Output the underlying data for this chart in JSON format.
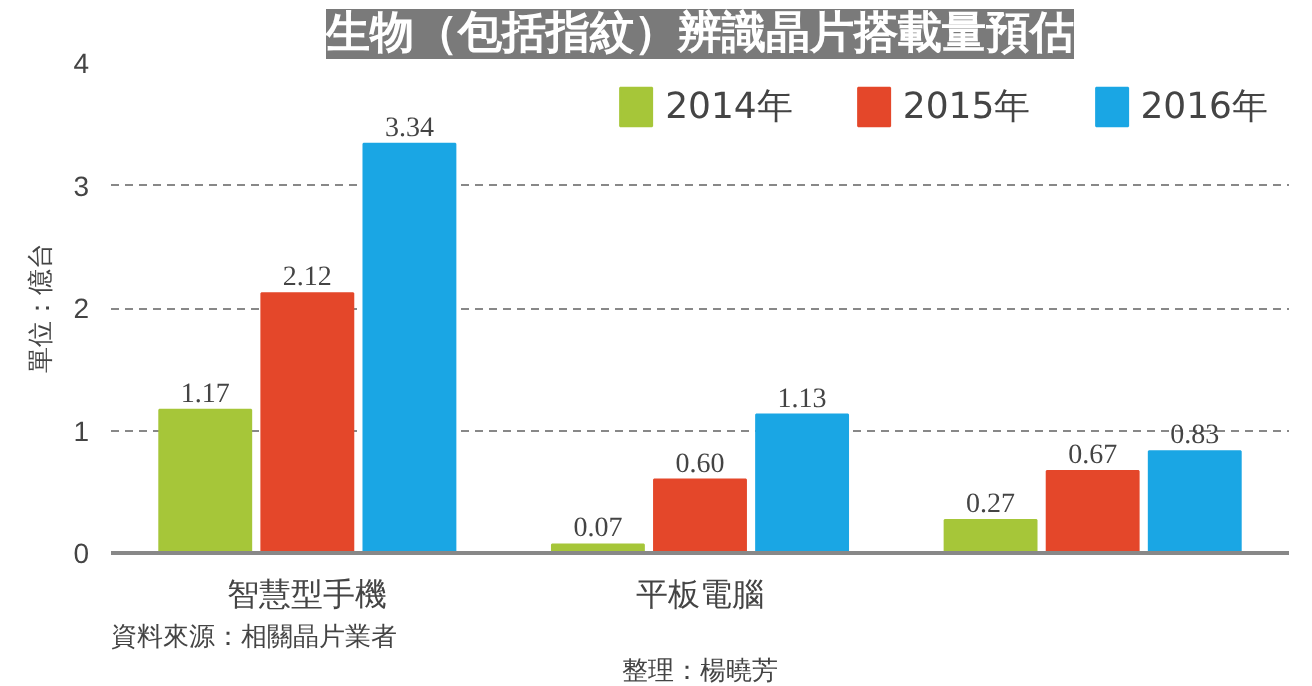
{
  "chart_data": {
    "type": "bar",
    "title": "生物（包括指紋）辨識晶片搭載量預估",
    "ylabel": "單位：億台",
    "categories": [
      "智慧型手機",
      "平板電腦",
      null
    ],
    "series": [
      {
        "name": "2014年",
        "color": "#a6c639",
        "values": [
          1.17,
          0.07,
          0.27
        ],
        "value_labels": [
          "1.17",
          "0.07",
          "0.27"
        ]
      },
      {
        "name": "2015年",
        "color": "#e4472a",
        "values": [
          2.12,
          0.6,
          0.67
        ],
        "value_labels": [
          "2.12",
          "0.60",
          "0.67"
        ]
      },
      {
        "name": "2016年",
        "color": "#1aa6e4",
        "values": [
          3.34,
          1.13,
          0.83
        ],
        "value_labels": [
          "3.34",
          "1.13",
          "0.83"
        ]
      }
    ],
    "ylim": [
      0,
      4
    ],
    "yticks": [
      0,
      1,
      2,
      3,
      4
    ],
    "grid": "y",
    "legend": "top right",
    "annotations": [
      "資料來源：相關晶片業者",
      "整理：楊曉芳"
    ]
  }
}
